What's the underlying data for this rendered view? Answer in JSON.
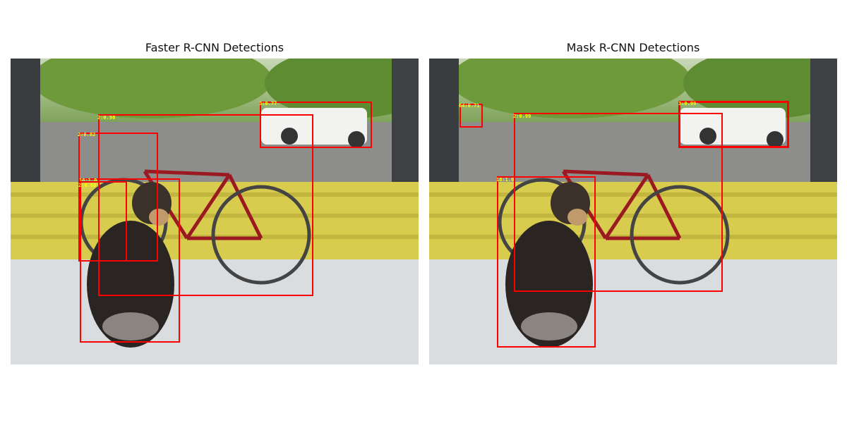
{
  "panels": {
    "left": {
      "title": "Faster R-CNN Detections",
      "detections": [
        {
          "label": "3:0.77"
        },
        {
          "label": "2:0.98"
        },
        {
          "label": "2:0.82"
        },
        {
          "label": "18:1.0"
        },
        {
          "label": "2:0.60"
        },
        {
          "label": "18:0"
        }
      ]
    },
    "right": {
      "title": "Mask R-CNN Detections",
      "detections": [
        {
          "label": "3:0.99"
        },
        {
          "label": "64:0.71"
        },
        {
          "label": "2:0.99"
        },
        {
          "label": "18:1.0"
        }
      ]
    }
  },
  "colors": {
    "box": "#ff0000",
    "label_text": "#ffff00",
    "background": "#ffffff"
  }
}
